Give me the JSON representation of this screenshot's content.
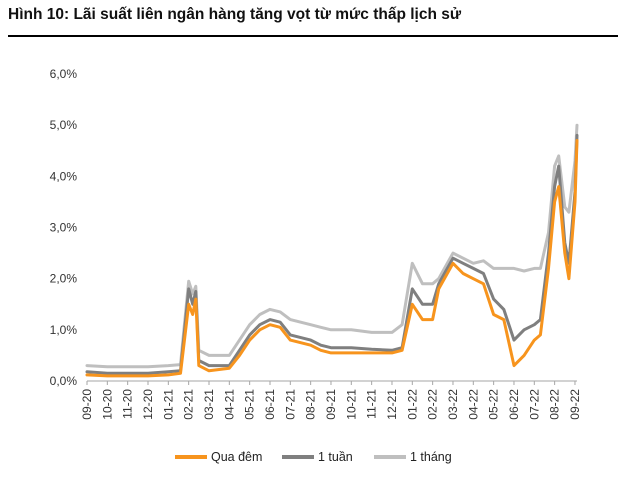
{
  "header": {
    "title": "Hình 10: Lãi suất liên ngân hàng tăng vọt từ mức thấp lịch sử"
  },
  "chart_data": {
    "type": "line",
    "title": "Hình 10: Lãi suất liên ngân hàng tăng vọt từ mức thấp lịch sử",
    "xlabel": "",
    "ylabel": "",
    "ylim": [
      0,
      6
    ],
    "y_ticks": [
      "0,0%",
      "1,0%",
      "2,0%",
      "3,0%",
      "4,0%",
      "5,0%",
      "6,0%"
    ],
    "y_tick_values": [
      0,
      1,
      2,
      3,
      4,
      5,
      6
    ],
    "x_ticks": [
      "09-20",
      "10-20",
      "11-20",
      "12-20",
      "01-21",
      "02-21",
      "03-21",
      "04-21",
      "05-21",
      "06-21",
      "07-21",
      "08-21",
      "09-21",
      "10-21",
      "11-21",
      "12-21",
      "01-22",
      "02-22",
      "03-22",
      "04-22",
      "05-22",
      "06-22",
      "07-22",
      "08-22",
      "09-22"
    ],
    "x_tick_values": [
      0,
      1,
      2,
      3,
      4,
      5,
      6,
      7,
      8,
      9,
      10,
      11,
      12,
      13,
      14,
      15,
      16,
      17,
      18,
      19,
      20,
      21,
      22,
      23,
      24
    ],
    "grid": false,
    "legend": "bottom",
    "series": [
      {
        "name": "Qua đêm",
        "color": "#F7941D",
        "points": [
          [
            0,
            0.12
          ],
          [
            1,
            0.1
          ],
          [
            2,
            0.1
          ],
          [
            3,
            0.1
          ],
          [
            4,
            0.12
          ],
          [
            4.6,
            0.15
          ],
          [
            5,
            1.5
          ],
          [
            5.2,
            1.3
          ],
          [
            5.35,
            1.6
          ],
          [
            5.5,
            0.3
          ],
          [
            6,
            0.2
          ],
          [
            7,
            0.25
          ],
          [
            7.5,
            0.5
          ],
          [
            8,
            0.8
          ],
          [
            8.5,
            1.0
          ],
          [
            9,
            1.1
          ],
          [
            9.5,
            1.05
          ],
          [
            10,
            0.8
          ],
          [
            11,
            0.7
          ],
          [
            11.5,
            0.6
          ],
          [
            12,
            0.55
          ],
          [
            13,
            0.55
          ],
          [
            14,
            0.55
          ],
          [
            15,
            0.55
          ],
          [
            15.5,
            0.6
          ],
          [
            16,
            1.5
          ],
          [
            16.5,
            1.2
          ],
          [
            17,
            1.2
          ],
          [
            17.3,
            1.8
          ],
          [
            18,
            2.3
          ],
          [
            18.5,
            2.1
          ],
          [
            19,
            2.0
          ],
          [
            19.5,
            1.9
          ],
          [
            20,
            1.3
          ],
          [
            20.5,
            1.2
          ],
          [
            21,
            0.3
          ],
          [
            21.5,
            0.5
          ],
          [
            22,
            0.8
          ],
          [
            22.3,
            0.9
          ],
          [
            22.7,
            2.2
          ],
          [
            23,
            3.5
          ],
          [
            23.2,
            3.8
          ],
          [
            23.5,
            2.5
          ],
          [
            23.7,
            2.0
          ],
          [
            24,
            3.5
          ],
          [
            24.1,
            4.7
          ]
        ]
      },
      {
        "name": "1 tuần",
        "color": "#7F7F7F",
        "points": [
          [
            0,
            0.18
          ],
          [
            1,
            0.15
          ],
          [
            2,
            0.15
          ],
          [
            3,
            0.15
          ],
          [
            4,
            0.18
          ],
          [
            4.6,
            0.2
          ],
          [
            5,
            1.8
          ],
          [
            5.2,
            1.5
          ],
          [
            5.35,
            1.75
          ],
          [
            5.5,
            0.4
          ],
          [
            6,
            0.3
          ],
          [
            7,
            0.3
          ],
          [
            7.5,
            0.6
          ],
          [
            8,
            0.9
          ],
          [
            8.5,
            1.1
          ],
          [
            9,
            1.2
          ],
          [
            9.5,
            1.15
          ],
          [
            10,
            0.9
          ],
          [
            11,
            0.8
          ],
          [
            11.5,
            0.7
          ],
          [
            12,
            0.65
          ],
          [
            13,
            0.65
          ],
          [
            14,
            0.62
          ],
          [
            15,
            0.6
          ],
          [
            15.5,
            0.65
          ],
          [
            16,
            1.8
          ],
          [
            16.5,
            1.5
          ],
          [
            17,
            1.5
          ],
          [
            17.3,
            1.9
          ],
          [
            18,
            2.4
          ],
          [
            18.5,
            2.3
          ],
          [
            19,
            2.2
          ],
          [
            19.5,
            2.1
          ],
          [
            20,
            1.6
          ],
          [
            20.5,
            1.4
          ],
          [
            21,
            0.8
          ],
          [
            21.5,
            1.0
          ],
          [
            22,
            1.1
          ],
          [
            22.3,
            1.2
          ],
          [
            22.7,
            2.5
          ],
          [
            23,
            3.8
          ],
          [
            23.2,
            4.2
          ],
          [
            23.5,
            2.7
          ],
          [
            23.7,
            2.3
          ],
          [
            24,
            3.7
          ],
          [
            24.1,
            4.8
          ]
        ]
      },
      {
        "name": "1 tháng",
        "color": "#BFBFBF",
        "points": [
          [
            0,
            0.3
          ],
          [
            1,
            0.28
          ],
          [
            2,
            0.28
          ],
          [
            3,
            0.28
          ],
          [
            4,
            0.3
          ],
          [
            4.6,
            0.32
          ],
          [
            5,
            1.95
          ],
          [
            5.2,
            1.7
          ],
          [
            5.35,
            1.85
          ],
          [
            5.5,
            0.6
          ],
          [
            6,
            0.5
          ],
          [
            7,
            0.5
          ],
          [
            7.5,
            0.8
          ],
          [
            8,
            1.1
          ],
          [
            8.5,
            1.3
          ],
          [
            9,
            1.4
          ],
          [
            9.5,
            1.35
          ],
          [
            10,
            1.2
          ],
          [
            11,
            1.1
          ],
          [
            11.5,
            1.05
          ],
          [
            12,
            1.0
          ],
          [
            13,
            1.0
          ],
          [
            14,
            0.95
          ],
          [
            15,
            0.95
          ],
          [
            15.5,
            1.1
          ],
          [
            16,
            2.3
          ],
          [
            16.5,
            1.9
          ],
          [
            17,
            1.9
          ],
          [
            17.3,
            2.0
          ],
          [
            18,
            2.5
          ],
          [
            18.5,
            2.4
          ],
          [
            19,
            2.3
          ],
          [
            19.5,
            2.35
          ],
          [
            20,
            2.2
          ],
          [
            20.5,
            2.2
          ],
          [
            21,
            2.2
          ],
          [
            21.5,
            2.15
          ],
          [
            22,
            2.2
          ],
          [
            22.3,
            2.2
          ],
          [
            22.7,
            2.9
          ],
          [
            23,
            4.2
          ],
          [
            23.2,
            4.4
          ],
          [
            23.5,
            3.4
          ],
          [
            23.7,
            3.3
          ],
          [
            24,
            4.3
          ],
          [
            24.1,
            5.0
          ]
        ]
      }
    ]
  }
}
